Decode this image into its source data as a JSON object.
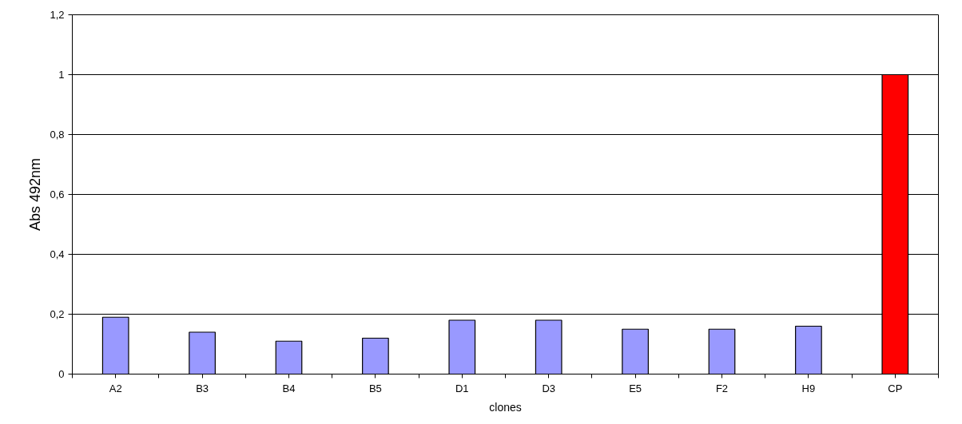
{
  "chart_data": {
    "type": "bar",
    "xlabel": "clones",
    "ylabel": "Abs 492nm",
    "categories": [
      "A2",
      "B3",
      "B4",
      "B5",
      "D1",
      "D3",
      "E5",
      "F2",
      "H9",
      "CP"
    ],
    "values": [
      0.19,
      0.14,
      0.11,
      0.12,
      0.18,
      0.18,
      0.15,
      0.15,
      0.16,
      1.0
    ],
    "colors": [
      "#9999ff",
      "#9999ff",
      "#9999ff",
      "#9999ff",
      "#9999ff",
      "#9999ff",
      "#9999ff",
      "#9999ff",
      "#9999ff",
      "#ff0000"
    ],
    "ylim": [
      0,
      1.2
    ],
    "yticks": [
      {
        "value": 0,
        "label": "0"
      },
      {
        "value": 0.2,
        "label": "0,2"
      },
      {
        "value": 0.4,
        "label": "0,4"
      },
      {
        "value": 0.6,
        "label": "0,6"
      },
      {
        "value": 0.8,
        "label": "0,8"
      },
      {
        "value": 1,
        "label": "1"
      },
      {
        "value": 1.2,
        "label": "1,2"
      }
    ],
    "grid": "y"
  }
}
